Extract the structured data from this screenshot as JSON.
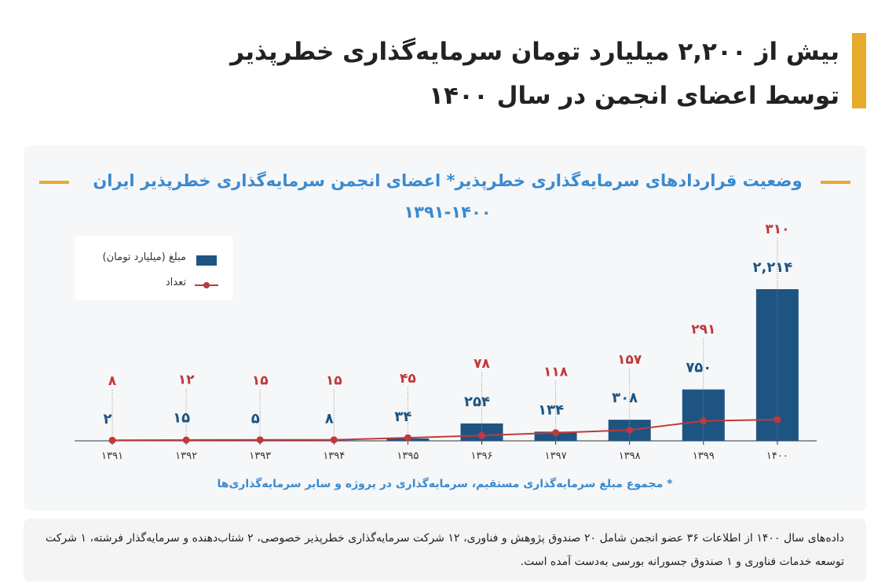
{
  "header": {
    "title_line1": "بیش از ۲,۲۰۰ میلیارد تومان سرمایه‌گذاری خطرپذیر",
    "title_line2": "توسط اعضای انجمن در سال ۱۴۰۰"
  },
  "colors": {
    "accent": "#e8ab2a",
    "bar": "#1e5482",
    "line": "#c0393b",
    "title": "#3a8ad0"
  },
  "chart_data": {
    "type": "bar",
    "title": "وضعیت قراردادهای سرمایه‌گذاری خطرپذیر* اعضای انجمن سرمایه‌گذاری خطرپذیر ایران",
    "subtitle": "۱۳۹۱-۱۴۰۰",
    "categories": [
      "۱۳۹۱",
      "۱۳۹۲",
      "۱۳۹۳",
      "۱۳۹۴",
      "۱۳۹۵",
      "۱۳۹۶",
      "۱۳۹۷",
      "۱۳۹۸",
      "۱۳۹۹",
      "۱۴۰۰"
    ],
    "series": [
      {
        "name": "مبلغ (میلیارد تومان)",
        "type": "bar",
        "values": [
          2,
          15,
          5,
          8,
          34,
          254,
          134,
          308,
          750,
          2214
        ],
        "labels": [
          "۲",
          "۱۵",
          "۵",
          "۸",
          "۳۴",
          "۲۵۴",
          "۱۳۴",
          "۳۰۸",
          "۷۵۰",
          "۲,۲۱۴"
        ]
      },
      {
        "name": "تعداد",
        "type": "line",
        "values": [
          8,
          12,
          15,
          15,
          45,
          78,
          118,
          157,
          291,
          310
        ],
        "labels": [
          "۸",
          "۱۲",
          "۱۵",
          "۱۵",
          "۴۵",
          "۷۸",
          "۱۱۸",
          "۱۵۷",
          "۲۹۱",
          "۳۱۰"
        ]
      }
    ],
    "ylim": [
      0,
      2214
    ],
    "legend_position": "top-left",
    "grid": false
  },
  "footnote": "* مجموع مبلغ سرمایه‌گذاری مستقیم، سرمایه‌گذاری در پروژه و سایر سرمایه‌گذاری‌ها",
  "note": "داده‌های سال ۱۴۰۰ از اطلاعات ۳۶ عضو انجمن شامل ۲۰ صندوق پژوهش و فناوری، ۱۲ شرکت سرمایه‌گذاری خطرپذیر خصوصی، ۲ شتاب‌دهنده و سرمایه‌گذار فرشته، ۱ شرکت توسعه خدمات فناوری و ۱ صندوق جسورانه بورسی به‌دست آمده است."
}
